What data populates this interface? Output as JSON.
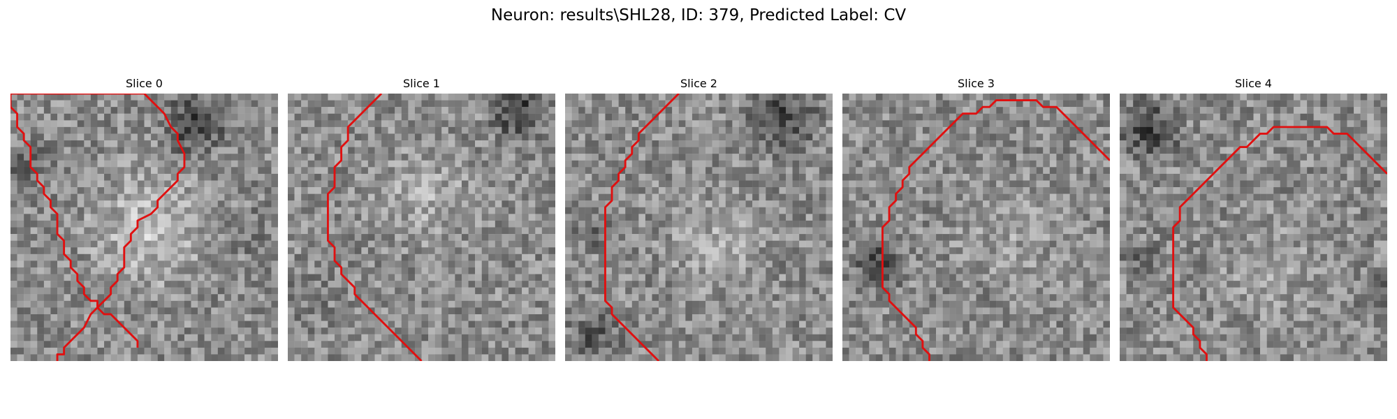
{
  "figure": {
    "title": "Neuron: results\\SHL28, ID: 379, Predicted Label: CV"
  },
  "panels": [
    {
      "title": "Slice 0",
      "contour": [
        [
          [
            7,
            40
          ],
          [
            7,
            39
          ],
          [
            8,
            39
          ],
          [
            8,
            38
          ],
          [
            9,
            37
          ],
          [
            10,
            36
          ],
          [
            11,
            35
          ],
          [
            12,
            33
          ],
          [
            13,
            32
          ],
          [
            14,
            31
          ],
          [
            15,
            30
          ],
          [
            15,
            29
          ],
          [
            16,
            28
          ],
          [
            16,
            27
          ],
          [
            17,
            26
          ],
          [
            17,
            23
          ],
          [
            18,
            22
          ],
          [
            18,
            21
          ],
          [
            19,
            20
          ],
          [
            19,
            19
          ],
          [
            21,
            18
          ],
          [
            22,
            17
          ],
          [
            22,
            16
          ],
          [
            23,
            15
          ],
          [
            24,
            14
          ],
          [
            25,
            13
          ],
          [
            25,
            12
          ],
          [
            26,
            11
          ],
          [
            26,
            10
          ],
          [
            26,
            9
          ],
          [
            25,
            7
          ],
          [
            25,
            6
          ],
          [
            24,
            5
          ],
          [
            23,
            3
          ],
          [
            22,
            2
          ],
          [
            21,
            1
          ],
          [
            20,
            0
          ],
          [
            19,
            0
          ],
          [
            18,
            0
          ],
          [
            17,
            0
          ],
          [
            16,
            0
          ],
          [
            15,
            0
          ],
          [
            14,
            0
          ],
          [
            13,
            0
          ],
          [
            12,
            0
          ],
          [
            11,
            0
          ],
          [
            10,
            0
          ],
          [
            9,
            0
          ],
          [
            8,
            0
          ],
          [
            7,
            0
          ],
          [
            6,
            0
          ],
          [
            5,
            0
          ],
          [
            4,
            0
          ],
          [
            3,
            0
          ],
          [
            2,
            0
          ],
          [
            1,
            0
          ],
          [
            0,
            0
          ],
          [
            0,
            1
          ],
          [
            0,
            2
          ],
          [
            1,
            3
          ],
          [
            1,
            4
          ],
          [
            1,
            5
          ],
          [
            2,
            6
          ],
          [
            2,
            7
          ],
          [
            3,
            8
          ],
          [
            3,
            9
          ],
          [
            3,
            10
          ],
          [
            3,
            11
          ],
          [
            4,
            12
          ],
          [
            4,
            13
          ],
          [
            5,
            14
          ],
          [
            5,
            15
          ],
          [
            6,
            16
          ],
          [
            6,
            17
          ],
          [
            7,
            18
          ],
          [
            7,
            19
          ],
          [
            7,
            20
          ],
          [
            7,
            21
          ],
          [
            8,
            22
          ],
          [
            8,
            23
          ],
          [
            8,
            24
          ],
          [
            9,
            25
          ],
          [
            9,
            26
          ],
          [
            10,
            27
          ],
          [
            10,
            28
          ],
          [
            11,
            29
          ],
          [
            11,
            30
          ],
          [
            12,
            31
          ],
          [
            13,
            31
          ],
          [
            13,
            32
          ],
          [
            14,
            33
          ],
          [
            15,
            33
          ],
          [
            16,
            34
          ],
          [
            17,
            35
          ],
          [
            18,
            36
          ],
          [
            19,
            37
          ],
          [
            19,
            38
          ]
        ]
      ]
    },
    {
      "title": "Slice 1",
      "contour": [
        [
          [
            14,
            0
          ],
          [
            13,
            1
          ],
          [
            12,
            2
          ],
          [
            11,
            3
          ],
          [
            10,
            4
          ],
          [
            9,
            5
          ],
          [
            9,
            6
          ],
          [
            9,
            7
          ],
          [
            8,
            8
          ],
          [
            8,
            9
          ],
          [
            8,
            10
          ],
          [
            7,
            11
          ],
          [
            7,
            12
          ],
          [
            7,
            13
          ],
          [
            7,
            14
          ],
          [
            6,
            15
          ],
          [
            6,
            16
          ],
          [
            6,
            17
          ],
          [
            6,
            18
          ],
          [
            6,
            19
          ],
          [
            6,
            20
          ],
          [
            6,
            21
          ],
          [
            6,
            22
          ],
          [
            7,
            23
          ],
          [
            7,
            24
          ],
          [
            7,
            25
          ],
          [
            8,
            26
          ],
          [
            8,
            27
          ],
          [
            9,
            28
          ],
          [
            10,
            29
          ],
          [
            10,
            30
          ],
          [
            11,
            31
          ],
          [
            12,
            32
          ],
          [
            13,
            33
          ],
          [
            14,
            34
          ],
          [
            15,
            35
          ],
          [
            16,
            36
          ],
          [
            17,
            37
          ],
          [
            18,
            38
          ],
          [
            19,
            39
          ],
          [
            20,
            40
          ]
        ]
      ]
    },
    {
      "title": "Slice 2",
      "contour": [
        [
          [
            17,
            0
          ],
          [
            16,
            1
          ],
          [
            15,
            2
          ],
          [
            14,
            3
          ],
          [
            13,
            4
          ],
          [
            12,
            5
          ],
          [
            11,
            6
          ],
          [
            11,
            7
          ],
          [
            10,
            8
          ],
          [
            10,
            9
          ],
          [
            9,
            10
          ],
          [
            9,
            11
          ],
          [
            8,
            12
          ],
          [
            8,
            13
          ],
          [
            7,
            14
          ],
          [
            7,
            15
          ],
          [
            7,
            16
          ],
          [
            6,
            17
          ],
          [
            6,
            18
          ],
          [
            6,
            19
          ],
          [
            6,
            20
          ],
          [
            6,
            21
          ],
          [
            6,
            22
          ],
          [
            6,
            23
          ],
          [
            6,
            24
          ],
          [
            6,
            25
          ],
          [
            6,
            26
          ],
          [
            6,
            27
          ],
          [
            6,
            28
          ],
          [
            6,
            29
          ],
          [
            6,
            30
          ],
          [
            6,
            31
          ],
          [
            7,
            32
          ],
          [
            7,
            33
          ],
          [
            8,
            34
          ],
          [
            9,
            35
          ],
          [
            10,
            36
          ],
          [
            11,
            37
          ],
          [
            12,
            38
          ],
          [
            13,
            39
          ],
          [
            14,
            40
          ]
        ]
      ]
    },
    {
      "title": "Slice 3",
      "contour": [
        [
          [
            13,
            40
          ],
          [
            13,
            39
          ],
          [
            12,
            38
          ],
          [
            12,
            37
          ],
          [
            11,
            36
          ],
          [
            11,
            35
          ],
          [
            10,
            34
          ],
          [
            9,
            33
          ],
          [
            8,
            32
          ],
          [
            7,
            31
          ],
          [
            7,
            30
          ],
          [
            6,
            29
          ],
          [
            6,
            28
          ],
          [
            6,
            27
          ],
          [
            6,
            26
          ],
          [
            6,
            25
          ],
          [
            6,
            24
          ],
          [
            6,
            23
          ],
          [
            6,
            22
          ],
          [
            6,
            21
          ],
          [
            6,
            20
          ],
          [
            7,
            19
          ],
          [
            7,
            18
          ],
          [
            7,
            17
          ],
          [
            8,
            16
          ],
          [
            8,
            15
          ],
          [
            9,
            14
          ],
          [
            9,
            13
          ],
          [
            10,
            12
          ],
          [
            10,
            11
          ],
          [
            11,
            10
          ],
          [
            12,
            9
          ],
          [
            13,
            8
          ],
          [
            14,
            7
          ],
          [
            15,
            6
          ],
          [
            16,
            5
          ],
          [
            17,
            4
          ],
          [
            18,
            3
          ],
          [
            19,
            3
          ],
          [
            20,
            3
          ],
          [
            21,
            2
          ],
          [
            22,
            2
          ],
          [
            23,
            1
          ],
          [
            24,
            1
          ],
          [
            25,
            1
          ],
          [
            26,
            1
          ],
          [
            27,
            1
          ],
          [
            28,
            1
          ],
          [
            29,
            1
          ],
          [
            30,
            2
          ],
          [
            31,
            2
          ],
          [
            32,
            2
          ],
          [
            33,
            3
          ],
          [
            34,
            4
          ],
          [
            35,
            5
          ],
          [
            36,
            6
          ],
          [
            37,
            7
          ],
          [
            38,
            8
          ],
          [
            39,
            9
          ],
          [
            40,
            10
          ]
        ]
      ]
    },
    {
      "title": "Slice 4",
      "contour": [
        [
          [
            13,
            40
          ],
          [
            13,
            39
          ],
          [
            12,
            38
          ],
          [
            12,
            37
          ],
          [
            11,
            36
          ],
          [
            11,
            35
          ],
          [
            10,
            34
          ],
          [
            9,
            33
          ],
          [
            8,
            32
          ],
          [
            8,
            31
          ],
          [
            8,
            30
          ],
          [
            8,
            29
          ],
          [
            8,
            28
          ],
          [
            8,
            27
          ],
          [
            8,
            26
          ],
          [
            8,
            25
          ],
          [
            8,
            24
          ],
          [
            8,
            23
          ],
          [
            8,
            22
          ],
          [
            8,
            21
          ],
          [
            8,
            20
          ],
          [
            9,
            19
          ],
          [
            9,
            18
          ],
          [
            9,
            17
          ],
          [
            10,
            16
          ],
          [
            11,
            15
          ],
          [
            12,
            14
          ],
          [
            13,
            13
          ],
          [
            14,
            12
          ],
          [
            15,
            11
          ],
          [
            16,
            10
          ],
          [
            17,
            9
          ],
          [
            18,
            8
          ],
          [
            19,
            8
          ],
          [
            20,
            7
          ],
          [
            21,
            6
          ],
          [
            22,
            6
          ],
          [
            23,
            5
          ],
          [
            24,
            5
          ],
          [
            25,
            5
          ],
          [
            26,
            5
          ],
          [
            27,
            5
          ],
          [
            28,
            5
          ],
          [
            29,
            5
          ],
          [
            30,
            5
          ],
          [
            31,
            5
          ],
          [
            32,
            6
          ],
          [
            33,
            6
          ],
          [
            34,
            6
          ],
          [
            35,
            7
          ],
          [
            36,
            8
          ],
          [
            37,
            9
          ],
          [
            38,
            10
          ],
          [
            39,
            11
          ],
          [
            40,
            12
          ]
        ]
      ]
    }
  ],
  "colors": {
    "contour": "#e01010"
  }
}
